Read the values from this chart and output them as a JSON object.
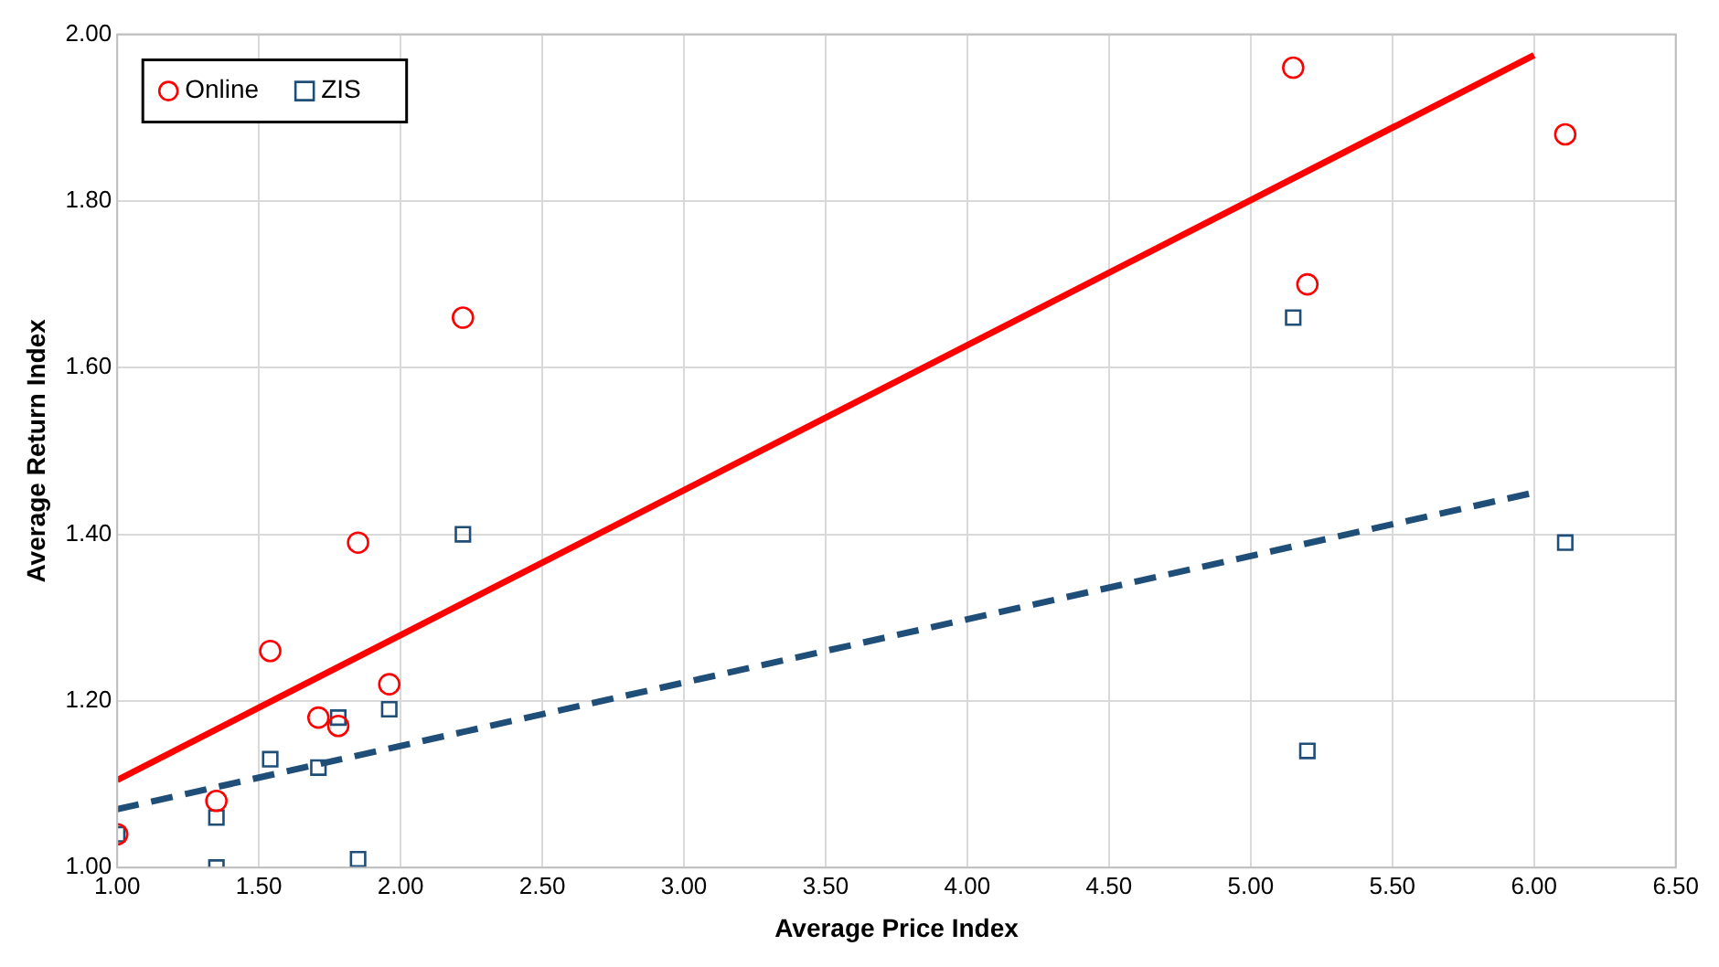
{
  "chart_data": {
    "type": "scatter",
    "xlabel": "Average Price Index",
    "ylabel": "Average Return Index",
    "xlim": [
      1,
      6.5
    ],
    "ylim": [
      1,
      2
    ],
    "xticks": [
      {
        "value": 1,
        "label": "1.00"
      },
      {
        "value": 1.5,
        "label": "1.50"
      },
      {
        "value": 2,
        "label": "2.00"
      },
      {
        "value": 2.5,
        "label": "2.50"
      },
      {
        "value": 3,
        "label": "3.00"
      },
      {
        "value": 3.5,
        "label": "3.50"
      },
      {
        "value": 4,
        "label": "4.00"
      },
      {
        "value": 4.5,
        "label": "4.50"
      },
      {
        "value": 5,
        "label": "5.00"
      },
      {
        "value": 5.5,
        "label": "5.50"
      },
      {
        "value": 6,
        "label": "6.00"
      },
      {
        "value": 6.5,
        "label": "6.50"
      }
    ],
    "yticks": [
      {
        "value": 1,
        "label": "1.00"
      },
      {
        "value": 1.2,
        "label": "1.20"
      },
      {
        "value": 1.4,
        "label": "1.40"
      },
      {
        "value": 1.6,
        "label": "1.60"
      },
      {
        "value": 1.8,
        "label": "1.80"
      },
      {
        "value": 2,
        "label": "2.00"
      }
    ],
    "grid": true,
    "legend": "top left",
    "series": [
      {
        "name": "Online",
        "marker": "circle",
        "color": "#ff0000",
        "x": [
          1.0,
          1.35,
          1.54,
          1.71,
          1.78,
          1.85,
          1.96,
          2.22,
          5.15,
          5.2,
          6.11
        ],
        "values": [
          1.04,
          1.08,
          1.26,
          1.18,
          1.17,
          1.39,
          1.22,
          1.66,
          1.96,
          1.7,
          1.88
        ]
      },
      {
        "name": "ZIS",
        "marker": "square",
        "color": "#1f4e79",
        "x": [
          1.0,
          1.35,
          1.35,
          1.54,
          1.71,
          1.78,
          1.85,
          1.96,
          2.22,
          5.15,
          5.2,
          6.11
        ],
        "values": [
          1.04,
          1.06,
          1.0,
          1.13,
          1.12,
          1.18,
          1.01,
          1.19,
          1.4,
          1.66,
          1.14,
          1.39
        ]
      },
      {
        "type": "line",
        "marker": "none",
        "line_style": "solid",
        "color": "#ff0000",
        "x": [
          1,
          6
        ],
        "values": [
          1.105,
          1.975
        ]
      },
      {
        "type": "line",
        "marker": "none",
        "line_style": "dashed",
        "color": "#1f4e79",
        "x": [
          1,
          6
        ],
        "values": [
          1.07,
          1.45
        ]
      }
    ]
  }
}
